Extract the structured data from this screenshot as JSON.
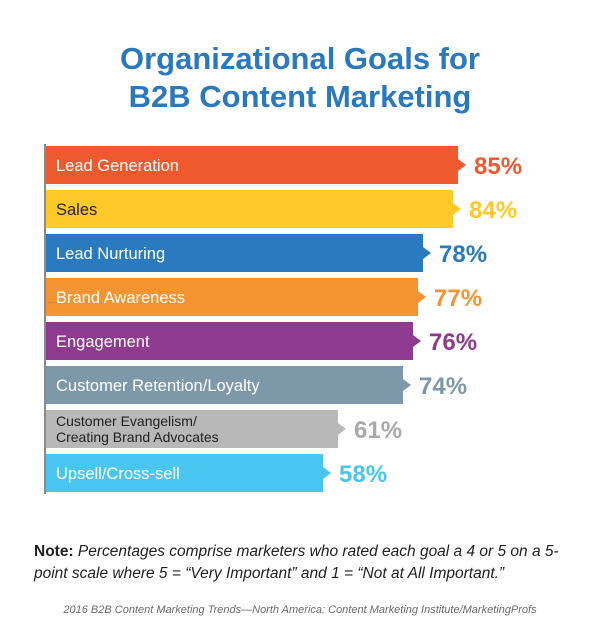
{
  "title_line1": "Organizational Goals for",
  "title_line2": "B2B Content Marketing",
  "note_label": "Note:",
  "note_text": "Percentages comprise marketers who rated each goal a 4 or 5 on a 5-point scale where 5 = “Very Important” and 1 = “Not at All Important.”",
  "source": "2016 B2B Content Marketing Trends—North America: Content Marketing Institute/MarketingProfs",
  "chart_data": {
    "type": "bar",
    "orientation": "horizontal",
    "categories": [
      "Lead Generation",
      "Sales",
      "Lead Nurturing",
      "Brand Awareness",
      "Engagement",
      "Customer Retention/Loyalty",
      "Customer Evangelism/\nCreating Brand Advocates",
      "Upsell/Cross-sell"
    ],
    "values": [
      85,
      84,
      78,
      77,
      76,
      74,
      61,
      58
    ],
    "value_labels": [
      "85%",
      "84%",
      "78%",
      "77%",
      "76%",
      "74%",
      "61%",
      "58%"
    ],
    "colors": [
      "#ee5a2e",
      "#ffc928",
      "#2a7ac0",
      "#f39430",
      "#8e3a8e",
      "#7d98a8",
      "#b8b8b8",
      "#48c6ef"
    ],
    "label_colors": [
      "#ffffff",
      "#222222",
      "#ffffff",
      "#ffffff",
      "#ffffff",
      "#ffffff",
      "#222222",
      "#ffffff"
    ]
  }
}
